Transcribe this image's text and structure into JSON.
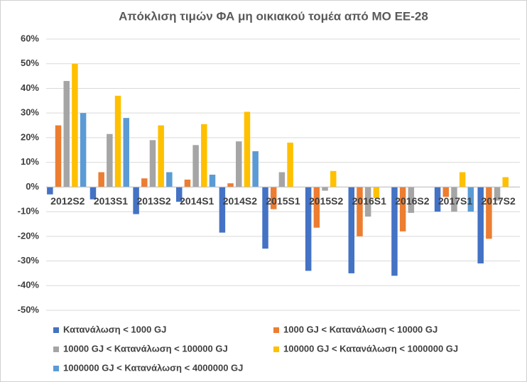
{
  "chart_data": {
    "type": "bar",
    "title": "Απόκλιση τιμών ΦΑ μη οικιακού τομέα από ΜΟ ΕΕ-28",
    "categories": [
      "2012S2",
      "2013S1",
      "2013S2",
      "2014S1",
      "2014S2",
      "2015S1",
      "2015S2",
      "2016S1",
      "2016S2",
      "2017S1",
      "2017S2"
    ],
    "series": [
      {
        "name": "Κατανάλωση < 1000 GJ",
        "color": "#4472c4",
        "values": [
          -3,
          -5,
          -11,
          -6,
          -18.5,
          -25,
          -34,
          -35,
          -36,
          -10,
          -31
        ]
      },
      {
        "name": "1000 GJ < Κατανάλωση < 10000 GJ",
        "color": "#ed7d31",
        "values": [
          25,
          6,
          3.5,
          3,
          1.5,
          -9,
          -16.5,
          -20,
          -18,
          -4,
          -21
        ]
      },
      {
        "name": "10000 GJ < Κατανάλωση < 100000 GJ",
        "color": "#a5a5a5",
        "values": [
          43,
          21.5,
          19,
          17,
          18.5,
          6,
          -1.5,
          -12,
          -10.5,
          -10,
          -5.5
        ]
      },
      {
        "name": "100000 GJ < Κατανάλωση < 1000000 GJ",
        "color": "#ffc000",
        "values": [
          50,
          37,
          25,
          25.5,
          30.5,
          18,
          6.5,
          -4.5,
          null,
          6,
          4
        ]
      },
      {
        "name": "1000000 GJ < Κατανάλωση < 4000000 GJ",
        "color": "#5b9bd5",
        "values": [
          30,
          28,
          6,
          5,
          14.5,
          null,
          null,
          null,
          null,
          -10,
          null
        ]
      }
    ],
    "ylim": [
      -50,
      60
    ],
    "yticks": [
      {
        "value": -50,
        "label": "-50%"
      },
      {
        "value": -40,
        "label": "-40%"
      },
      {
        "value": -30,
        "label": "-30%"
      },
      {
        "value": -20,
        "label": "-20%"
      },
      {
        "value": -10,
        "label": "-10%"
      },
      {
        "value": 0,
        "label": "0%"
      },
      {
        "value": 10,
        "label": "10%"
      },
      {
        "value": 20,
        "label": "20%"
      },
      {
        "value": 30,
        "label": "30%"
      },
      {
        "value": 40,
        "label": "40%"
      },
      {
        "value": 50,
        "label": "50%"
      },
      {
        "value": 60,
        "label": "60%"
      }
    ],
    "grid": true,
    "legend": "bottom"
  }
}
